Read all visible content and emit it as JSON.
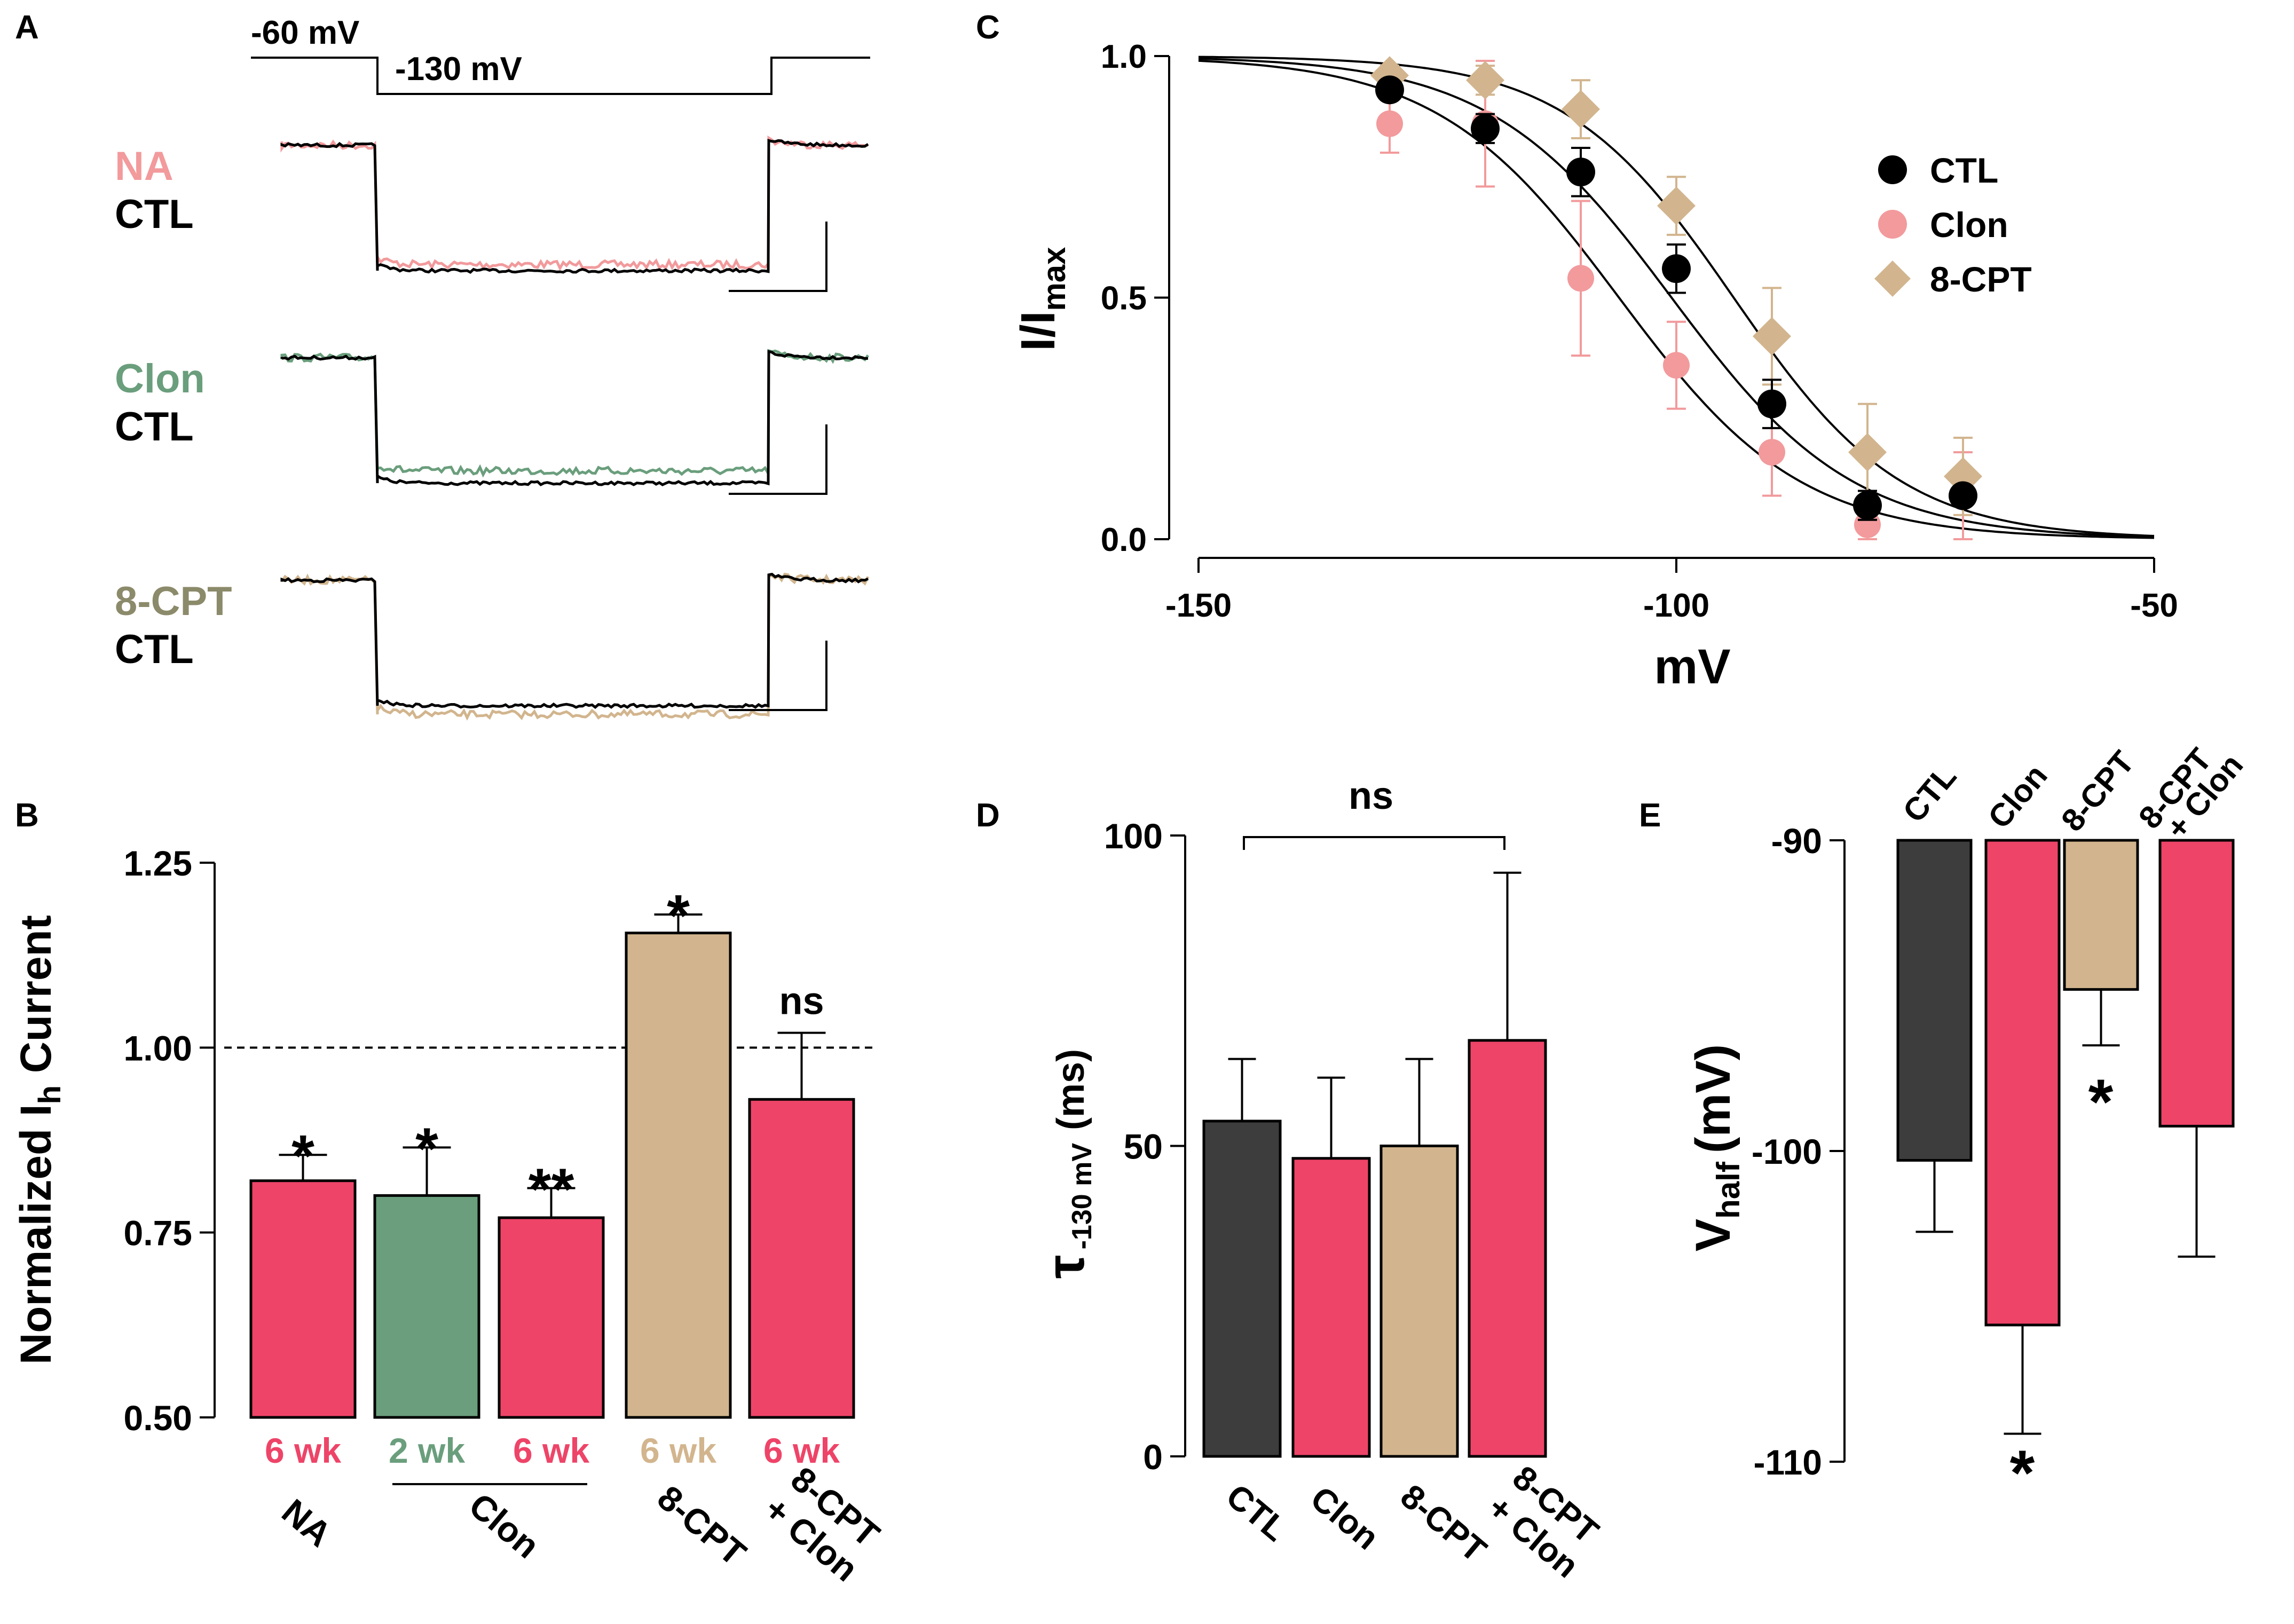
{
  "colors": {
    "ctl": "#3d3d3d",
    "clon": "#ee4468",
    "clon_light": "#f29a9c",
    "green": "#6a9e7c",
    "tan": "#d2b58e",
    "tan_label": "#8b8a6a",
    "black": "#000000"
  },
  "chart_data": [
    {
      "panel": "A",
      "type": "line",
      "description_labels": {
        "holding": "-60 mV",
        "step": "-130 mV"
      },
      "series": [
        {
          "name": "NA",
          "values": [
            0.84,
            0.55,
            0.84
          ]
        },
        {
          "name": "CTL",
          "values": [
            0.84,
            0.5,
            0.84
          ]
        },
        {
          "name": "Clon",
          "values": [
            0.84,
            0.6,
            0.84
          ]
        },
        {
          "name": "CTL",
          "values": [
            0.84,
            0.5,
            0.84
          ]
        },
        {
          "name": "8-CPT",
          "values": [
            0.84,
            0.43,
            0.84
          ]
        },
        {
          "name": "CTL",
          "values": [
            0.84,
            0.5,
            0.84
          ]
        }
      ]
    },
    {
      "panel": "B",
      "type": "bar",
      "title": "",
      "ylabel": "Normalized Ih Current",
      "ylabel_main": "Normalized I",
      "ylabel_sub": "h",
      "ylabel_end": "Current",
      "ylim": [
        0.5,
        1.25
      ],
      "yticks": [
        "0.50",
        "0.75",
        "1.00",
        "1.25"
      ],
      "reference_line": 1.0,
      "categories": [
        "6 wk",
        "2 wk",
        "6 wk",
        "6 wk",
        "6 wk"
      ],
      "groups": [
        "NA",
        "Clon",
        "8-CPT",
        "8-CPT + Clon"
      ],
      "group_lines": [
        "8-CPT",
        "+ Clon"
      ],
      "values": [
        0.82,
        0.8,
        0.77,
        1.155,
        0.93
      ],
      "errors": [
        0.035,
        0.065,
        0.04,
        0.025,
        0.09
      ],
      "annotations": [
        "*",
        "*",
        "**",
        "*",
        "ns"
      ]
    },
    {
      "panel": "C",
      "type": "scatter",
      "xlabel": "mV",
      "ylabel": "I/Imax",
      "ylabel_main": "I/I",
      "ylabel_sub": "max",
      "xlim": [
        -150,
        -50
      ],
      "ylim": [
        0.0,
        1.0
      ],
      "xticks": [
        "-150",
        "-100",
        "-50"
      ],
      "yticks": [
        "0.0",
        "0.5",
        "1.0"
      ],
      "series": [
        {
          "name": "CTL",
          "x": [
            -130,
            -120,
            -110,
            -100,
            -90,
            -80,
            -70
          ],
          "y": [
            0.93,
            0.85,
            0.76,
            0.56,
            0.28,
            0.07,
            0.09
          ],
          "err": [
            0.02,
            0.03,
            0.05,
            0.05,
            0.05,
            0.03,
            0.02
          ],
          "vhalf": -100.5,
          "slope": 9.5
        },
        {
          "name": "Clon",
          "x": [
            -130,
            -120,
            -110,
            -100,
            -90,
            -80,
            -70
          ],
          "y": [
            0.86,
            0.86,
            0.54,
            0.36,
            0.18,
            0.03,
            0.09
          ],
          "err": [
            0.06,
            0.13,
            0.16,
            0.09,
            0.09,
            0.03,
            0.09
          ],
          "vhalf": -106,
          "slope": 9.5
        },
        {
          "name": "8-CPT",
          "x": [
            -130,
            -120,
            -110,
            -100,
            -90,
            -80,
            -70
          ],
          "y": [
            0.96,
            0.95,
            0.89,
            0.69,
            0.42,
            0.18,
            0.13
          ],
          "err": [
            0.02,
            0.03,
            0.06,
            0.06,
            0.1,
            0.1,
            0.08
          ],
          "vhalf": -94,
          "slope": 8.8
        }
      ]
    },
    {
      "panel": "D",
      "type": "bar",
      "ylabel": "τ -130 mV (ms)",
      "ylabel_main": "τ",
      "ylabel_sub": "-130 mV",
      "ylabel_end": "(ms)",
      "ylim": [
        0,
        100
      ],
      "yticks": [
        "0",
        "50",
        "100"
      ],
      "categories": [
        "CTL",
        "Clon",
        "8-CPT",
        "8-CPT + Clon"
      ],
      "category_lines": [
        "8-CPT",
        "+ Clon"
      ],
      "values": [
        54,
        48,
        50,
        67
      ],
      "errors": [
        10,
        13,
        14,
        27
      ],
      "annotations": [
        "ns"
      ]
    },
    {
      "panel": "E",
      "type": "bar",
      "ylabel": "Vhalf (mV)",
      "ylabel_main": "V",
      "ylabel_sub": "half",
      "ylabel_end": "(mV)",
      "ylim": [
        -110,
        -90
      ],
      "yticks": [
        "-90",
        "-100",
        "-110"
      ],
      "categories": [
        "CTL",
        "Clon",
        "8-CPT",
        "8-CPT + Clon"
      ],
      "category_lines": [
        "8-CPT",
        "+ Clon"
      ],
      "values": [
        -100.3,
        -105.6,
        -94.8,
        -99.2
      ],
      "errors": [
        2.3,
        3.5,
        1.8,
        4.2
      ],
      "annotations": [
        "*",
        "*"
      ]
    }
  ],
  "panel_letters": [
    "A",
    "B",
    "C",
    "D",
    "E"
  ]
}
